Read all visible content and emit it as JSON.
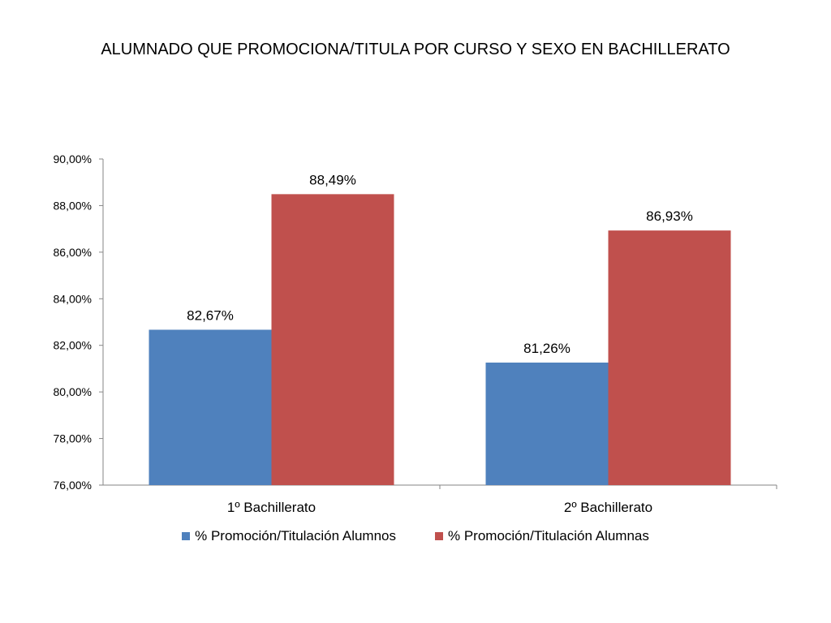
{
  "chart_data": {
    "type": "bar",
    "title": "ALUMNADO QUE PROMOCIONA/TITULA POR CURSO Y SEXO EN BACHILLERATO",
    "categories": [
      "1º Bachillerato",
      "2º Bachillerato"
    ],
    "series": [
      {
        "name": "% Promoción/Titulación Alumnos",
        "color": "#4F81BD",
        "values": [
          82.67,
          81.26
        ],
        "labels": [
          "82,67%",
          "81,26%"
        ]
      },
      {
        "name": "% Promoción/Titulación Alumnas",
        "color": "#C0504D",
        "values": [
          88.49,
          86.93
        ],
        "labels": [
          "88,49%",
          "86,93%"
        ]
      }
    ],
    "ylim": [
      76,
      90
    ],
    "yticks": [
      76,
      78,
      80,
      82,
      84,
      86,
      88,
      90
    ],
    "ytick_labels": [
      "76,00%",
      "78,00%",
      "80,00%",
      "82,00%",
      "84,00%",
      "86,00%",
      "88,00%",
      "90,00%"
    ],
    "xlabel": "",
    "ylabel": "",
    "grid": false,
    "legend_position": "bottom"
  }
}
